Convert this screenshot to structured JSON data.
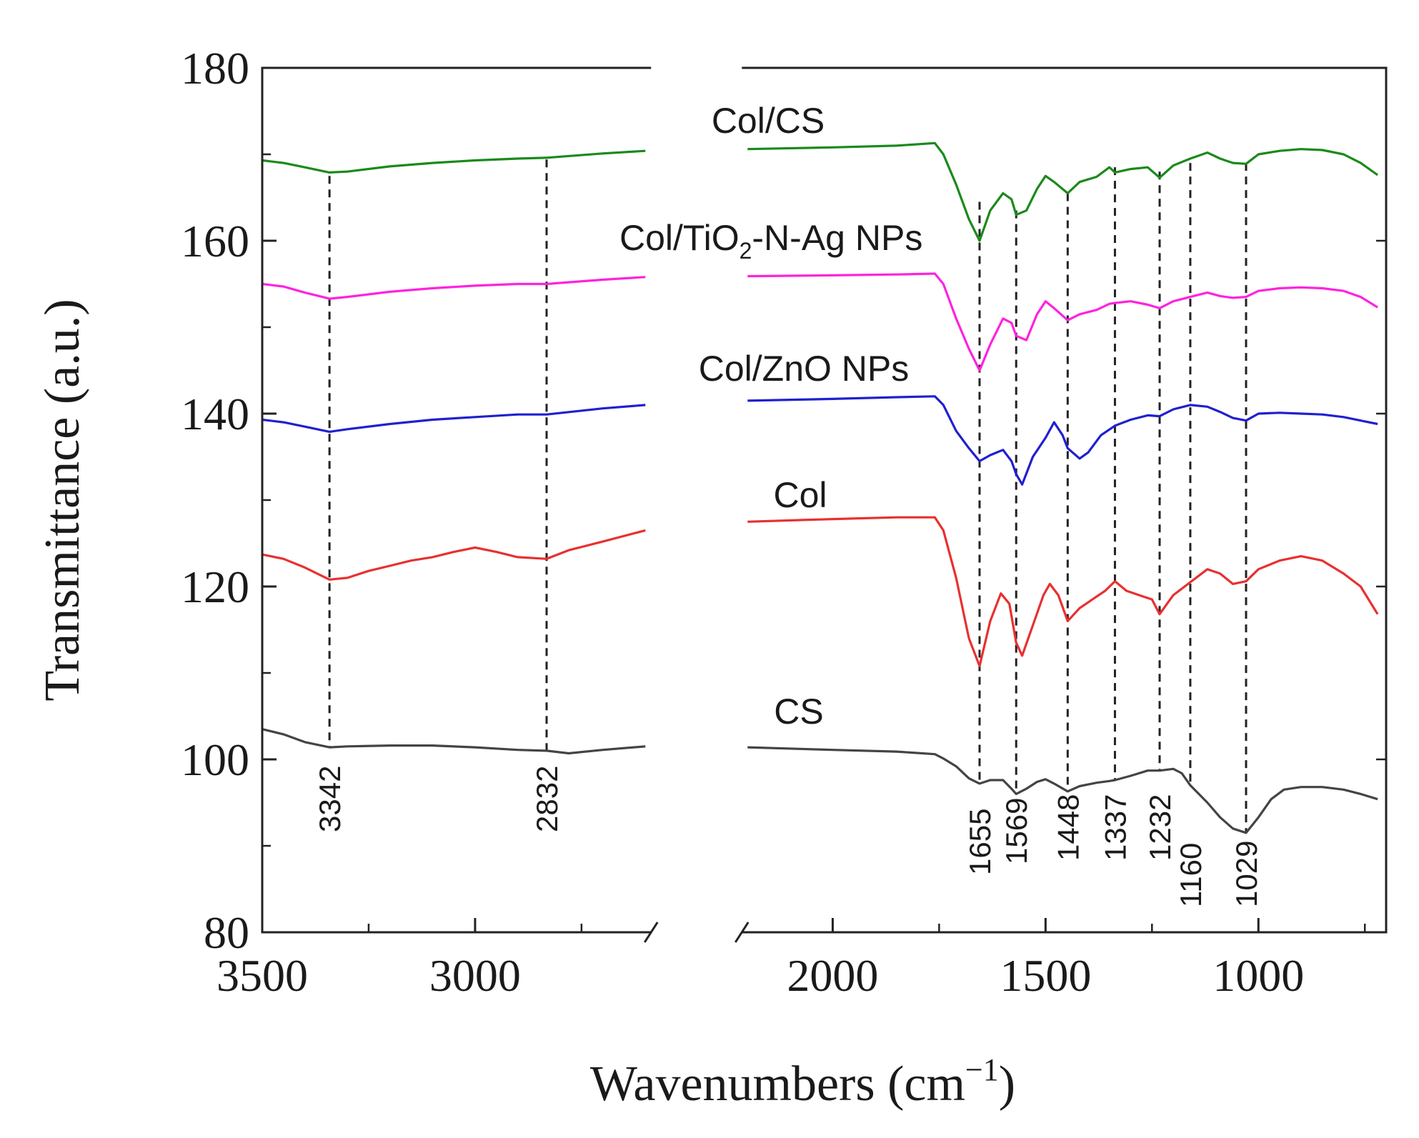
{
  "chart_data": {
    "type": "line",
    "title": "",
    "xlabel": "Wavenumbers (cm",
    "xlabel_sup": "−1",
    "xlabel_close": ")",
    "ylabel": "Transmittance (a.u.)",
    "ylim": [
      80,
      180
    ],
    "x_break": [
      2600,
      2200
    ],
    "x_segments": [
      [
        3500,
        2600
      ],
      [
        2200,
        720
      ]
    ],
    "y_ticks": [
      "80",
      "100",
      "120",
      "140",
      "160",
      "180"
    ],
    "x_ticks": [
      "3500",
      "3000",
      "2000",
      "1500",
      "1000"
    ],
    "peak_lines": [
      {
        "x": 3342,
        "label": "3342"
      },
      {
        "x": 2832,
        "label": "2832"
      },
      {
        "x": 1655,
        "label": "1655"
      },
      {
        "x": 1569,
        "label": "1569"
      },
      {
        "x": 1448,
        "label": "1448"
      },
      {
        "x": 1337,
        "label": "1337"
      },
      {
        "x": 1232,
        "label": "1232"
      },
      {
        "x": 1160,
        "label": "1160"
      },
      {
        "x": 1029,
        "label": "1029"
      }
    ],
    "series": [
      {
        "name": "Col/CS",
        "label_main": "Col/CS",
        "color": "#1a8a1a",
        "points": [
          [
            3500,
            169.3
          ],
          [
            3450,
            169.0
          ],
          [
            3400,
            168.5
          ],
          [
            3342,
            167.9
          ],
          [
            3300,
            168.0
          ],
          [
            3200,
            168.6
          ],
          [
            3100,
            169.0
          ],
          [
            3000,
            169.3
          ],
          [
            2900,
            169.5
          ],
          [
            2832,
            169.6
          ],
          [
            2700,
            170.1
          ],
          [
            2600,
            170.4
          ],
          [
            2200,
            170.6
          ],
          [
            2000,
            170.8
          ],
          [
            1850,
            171.0
          ],
          [
            1760,
            171.3
          ],
          [
            1740,
            170.0
          ],
          [
            1710,
            166.5
          ],
          [
            1680,
            162.5
          ],
          [
            1655,
            160.0
          ],
          [
            1630,
            163.5
          ],
          [
            1600,
            165.5
          ],
          [
            1580,
            164.8
          ],
          [
            1569,
            163.0
          ],
          [
            1545,
            163.5
          ],
          [
            1520,
            166.0
          ],
          [
            1500,
            167.5
          ],
          [
            1480,
            166.8
          ],
          [
            1448,
            165.5
          ],
          [
            1420,
            166.8
          ],
          [
            1380,
            167.4
          ],
          [
            1350,
            168.5
          ],
          [
            1337,
            167.9
          ],
          [
            1300,
            168.3
          ],
          [
            1260,
            168.5
          ],
          [
            1232,
            167.3
          ],
          [
            1200,
            168.7
          ],
          [
            1160,
            169.5
          ],
          [
            1120,
            170.2
          ],
          [
            1090,
            169.5
          ],
          [
            1060,
            169.0
          ],
          [
            1029,
            168.9
          ],
          [
            1000,
            170.0
          ],
          [
            950,
            170.4
          ],
          [
            900,
            170.6
          ],
          [
            850,
            170.5
          ],
          [
            800,
            170.0
          ],
          [
            760,
            169.0
          ],
          [
            720,
            167.6
          ]
        ]
      },
      {
        "name": "Col/TiO2-N-Ag NPs",
        "label_main": "Col/TiO",
        "label_sub": "2",
        "label_rest": "-N-Ag NPs",
        "color": "#ff22dd",
        "points": [
          [
            3500,
            155.0
          ],
          [
            3450,
            154.7
          ],
          [
            3400,
            154.0
          ],
          [
            3342,
            153.3
          ],
          [
            3300,
            153.5
          ],
          [
            3200,
            154.1
          ],
          [
            3100,
            154.5
          ],
          [
            3000,
            154.8
          ],
          [
            2900,
            155.0
          ],
          [
            2832,
            155.0
          ],
          [
            2700,
            155.5
          ],
          [
            2600,
            155.8
          ],
          [
            2200,
            155.9
          ],
          [
            2000,
            156.0
          ],
          [
            1850,
            156.1
          ],
          [
            1760,
            156.2
          ],
          [
            1740,
            155.0
          ],
          [
            1710,
            151.0
          ],
          [
            1680,
            147.5
          ],
          [
            1655,
            145.0
          ],
          [
            1630,
            148.0
          ],
          [
            1600,
            151.0
          ],
          [
            1580,
            150.5
          ],
          [
            1569,
            149.0
          ],
          [
            1545,
            148.5
          ],
          [
            1520,
            151.5
          ],
          [
            1500,
            153.0
          ],
          [
            1480,
            152.2
          ],
          [
            1448,
            150.8
          ],
          [
            1420,
            151.5
          ],
          [
            1380,
            152.0
          ],
          [
            1350,
            152.7
          ],
          [
            1337,
            152.8
          ],
          [
            1300,
            153.0
          ],
          [
            1260,
            152.6
          ],
          [
            1232,
            152.2
          ],
          [
            1200,
            153.0
          ],
          [
            1160,
            153.5
          ],
          [
            1120,
            154.0
          ],
          [
            1090,
            153.6
          ],
          [
            1060,
            153.4
          ],
          [
            1029,
            153.5
          ],
          [
            1000,
            154.2
          ],
          [
            950,
            154.5
          ],
          [
            900,
            154.6
          ],
          [
            850,
            154.5
          ],
          [
            800,
            154.2
          ],
          [
            760,
            153.5
          ],
          [
            720,
            152.3
          ]
        ]
      },
      {
        "name": "Col/ZnO NPs",
        "label_main": "Col/ZnO NPs",
        "color": "#2020d0",
        "points": [
          [
            3500,
            139.3
          ],
          [
            3450,
            139.0
          ],
          [
            3400,
            138.5
          ],
          [
            3342,
            137.9
          ],
          [
            3300,
            138.2
          ],
          [
            3200,
            138.8
          ],
          [
            3100,
            139.3
          ],
          [
            3000,
            139.6
          ],
          [
            2900,
            139.9
          ],
          [
            2832,
            139.9
          ],
          [
            2700,
            140.6
          ],
          [
            2600,
            141.0
          ],
          [
            2200,
            141.5
          ],
          [
            2000,
            141.7
          ],
          [
            1850,
            141.9
          ],
          [
            1760,
            142.0
          ],
          [
            1740,
            141.0
          ],
          [
            1710,
            138.0
          ],
          [
            1680,
            136.0
          ],
          [
            1655,
            134.5
          ],
          [
            1630,
            135.2
          ],
          [
            1600,
            135.8
          ],
          [
            1580,
            134.5
          ],
          [
            1569,
            133.0
          ],
          [
            1555,
            131.8
          ],
          [
            1530,
            135.0
          ],
          [
            1500,
            137.2
          ],
          [
            1480,
            139.0
          ],
          [
            1460,
            137.5
          ],
          [
            1448,
            136.0
          ],
          [
            1420,
            134.8
          ],
          [
            1400,
            135.5
          ],
          [
            1370,
            137.5
          ],
          [
            1337,
            138.6
          ],
          [
            1300,
            139.3
          ],
          [
            1260,
            139.8
          ],
          [
            1232,
            139.7
          ],
          [
            1200,
            140.5
          ],
          [
            1160,
            141.0
          ],
          [
            1120,
            140.8
          ],
          [
            1090,
            140.2
          ],
          [
            1060,
            139.5
          ],
          [
            1029,
            139.2
          ],
          [
            1000,
            140.0
          ],
          [
            950,
            140.1
          ],
          [
            900,
            140.0
          ],
          [
            850,
            139.9
          ],
          [
            800,
            139.6
          ],
          [
            760,
            139.2
          ],
          [
            720,
            138.8
          ]
        ]
      },
      {
        "name": "Col",
        "label_main": "Col",
        "color": "#e83030",
        "points": [
          [
            3500,
            123.7
          ],
          [
            3450,
            123.2
          ],
          [
            3400,
            122.2
          ],
          [
            3342,
            120.8
          ],
          [
            3300,
            121.0
          ],
          [
            3250,
            121.8
          ],
          [
            3200,
            122.4
          ],
          [
            3150,
            123.0
          ],
          [
            3100,
            123.4
          ],
          [
            3050,
            124.0
          ],
          [
            3000,
            124.5
          ],
          [
            2950,
            124.0
          ],
          [
            2900,
            123.4
          ],
          [
            2832,
            123.2
          ],
          [
            2780,
            124.2
          ],
          [
            2700,
            125.2
          ],
          [
            2600,
            126.5
          ],
          [
            2200,
            127.5
          ],
          [
            2000,
            127.8
          ],
          [
            1850,
            128.0
          ],
          [
            1760,
            128.0
          ],
          [
            1740,
            126.5
          ],
          [
            1710,
            121.0
          ],
          [
            1680,
            114.0
          ],
          [
            1655,
            110.8
          ],
          [
            1630,
            116.0
          ],
          [
            1605,
            119.2
          ],
          [
            1585,
            118.0
          ],
          [
            1569,
            113.5
          ],
          [
            1555,
            112.0
          ],
          [
            1530,
            115.5
          ],
          [
            1505,
            119.0
          ],
          [
            1490,
            120.3
          ],
          [
            1470,
            119.0
          ],
          [
            1448,
            116.0
          ],
          [
            1420,
            117.5
          ],
          [
            1390,
            118.5
          ],
          [
            1360,
            119.5
          ],
          [
            1337,
            120.6
          ],
          [
            1310,
            119.5
          ],
          [
            1280,
            119.0
          ],
          [
            1250,
            118.5
          ],
          [
            1232,
            116.8
          ],
          [
            1200,
            119.0
          ],
          [
            1160,
            120.5
          ],
          [
            1120,
            122.0
          ],
          [
            1090,
            121.5
          ],
          [
            1060,
            120.3
          ],
          [
            1029,
            120.6
          ],
          [
            1000,
            122.0
          ],
          [
            950,
            123.0
          ],
          [
            900,
            123.5
          ],
          [
            850,
            123.0
          ],
          [
            800,
            121.5
          ],
          [
            760,
            120.0
          ],
          [
            720,
            116.8
          ]
        ]
      },
      {
        "name": "CS",
        "label_main": "CS",
        "color": "#444444",
        "points": [
          [
            3500,
            103.5
          ],
          [
            3450,
            102.9
          ],
          [
            3400,
            102.0
          ],
          [
            3342,
            101.4
          ],
          [
            3300,
            101.5
          ],
          [
            3200,
            101.6
          ],
          [
            3100,
            101.6
          ],
          [
            3000,
            101.4
          ],
          [
            2900,
            101.1
          ],
          [
            2832,
            101.0
          ],
          [
            2780,
            100.7
          ],
          [
            2700,
            101.1
          ],
          [
            2600,
            101.5
          ],
          [
            2200,
            101.4
          ],
          [
            2000,
            101.1
          ],
          [
            1850,
            100.9
          ],
          [
            1760,
            100.6
          ],
          [
            1740,
            100.1
          ],
          [
            1710,
            99.2
          ],
          [
            1680,
            97.8
          ],
          [
            1655,
            97.2
          ],
          [
            1630,
            97.6
          ],
          [
            1600,
            97.6
          ],
          [
            1580,
            96.6
          ],
          [
            1569,
            96.0
          ],
          [
            1545,
            96.6
          ],
          [
            1520,
            97.4
          ],
          [
            1500,
            97.7
          ],
          [
            1480,
            97.2
          ],
          [
            1448,
            96.3
          ],
          [
            1420,
            96.9
          ],
          [
            1380,
            97.3
          ],
          [
            1350,
            97.5
          ],
          [
            1337,
            97.6
          ],
          [
            1300,
            98.1
          ],
          [
            1260,
            98.7
          ],
          [
            1232,
            98.7
          ],
          [
            1200,
            98.9
          ],
          [
            1180,
            98.4
          ],
          [
            1160,
            97.0
          ],
          [
            1120,
            95.0
          ],
          [
            1090,
            93.3
          ],
          [
            1060,
            92.0
          ],
          [
            1029,
            91.5
          ],
          [
            1000,
            93.3
          ],
          [
            970,
            95.4
          ],
          [
            940,
            96.5
          ],
          [
            900,
            96.8
          ],
          [
            850,
            96.8
          ],
          [
            800,
            96.5
          ],
          [
            760,
            96.0
          ],
          [
            720,
            95.4
          ]
        ]
      }
    ]
  }
}
